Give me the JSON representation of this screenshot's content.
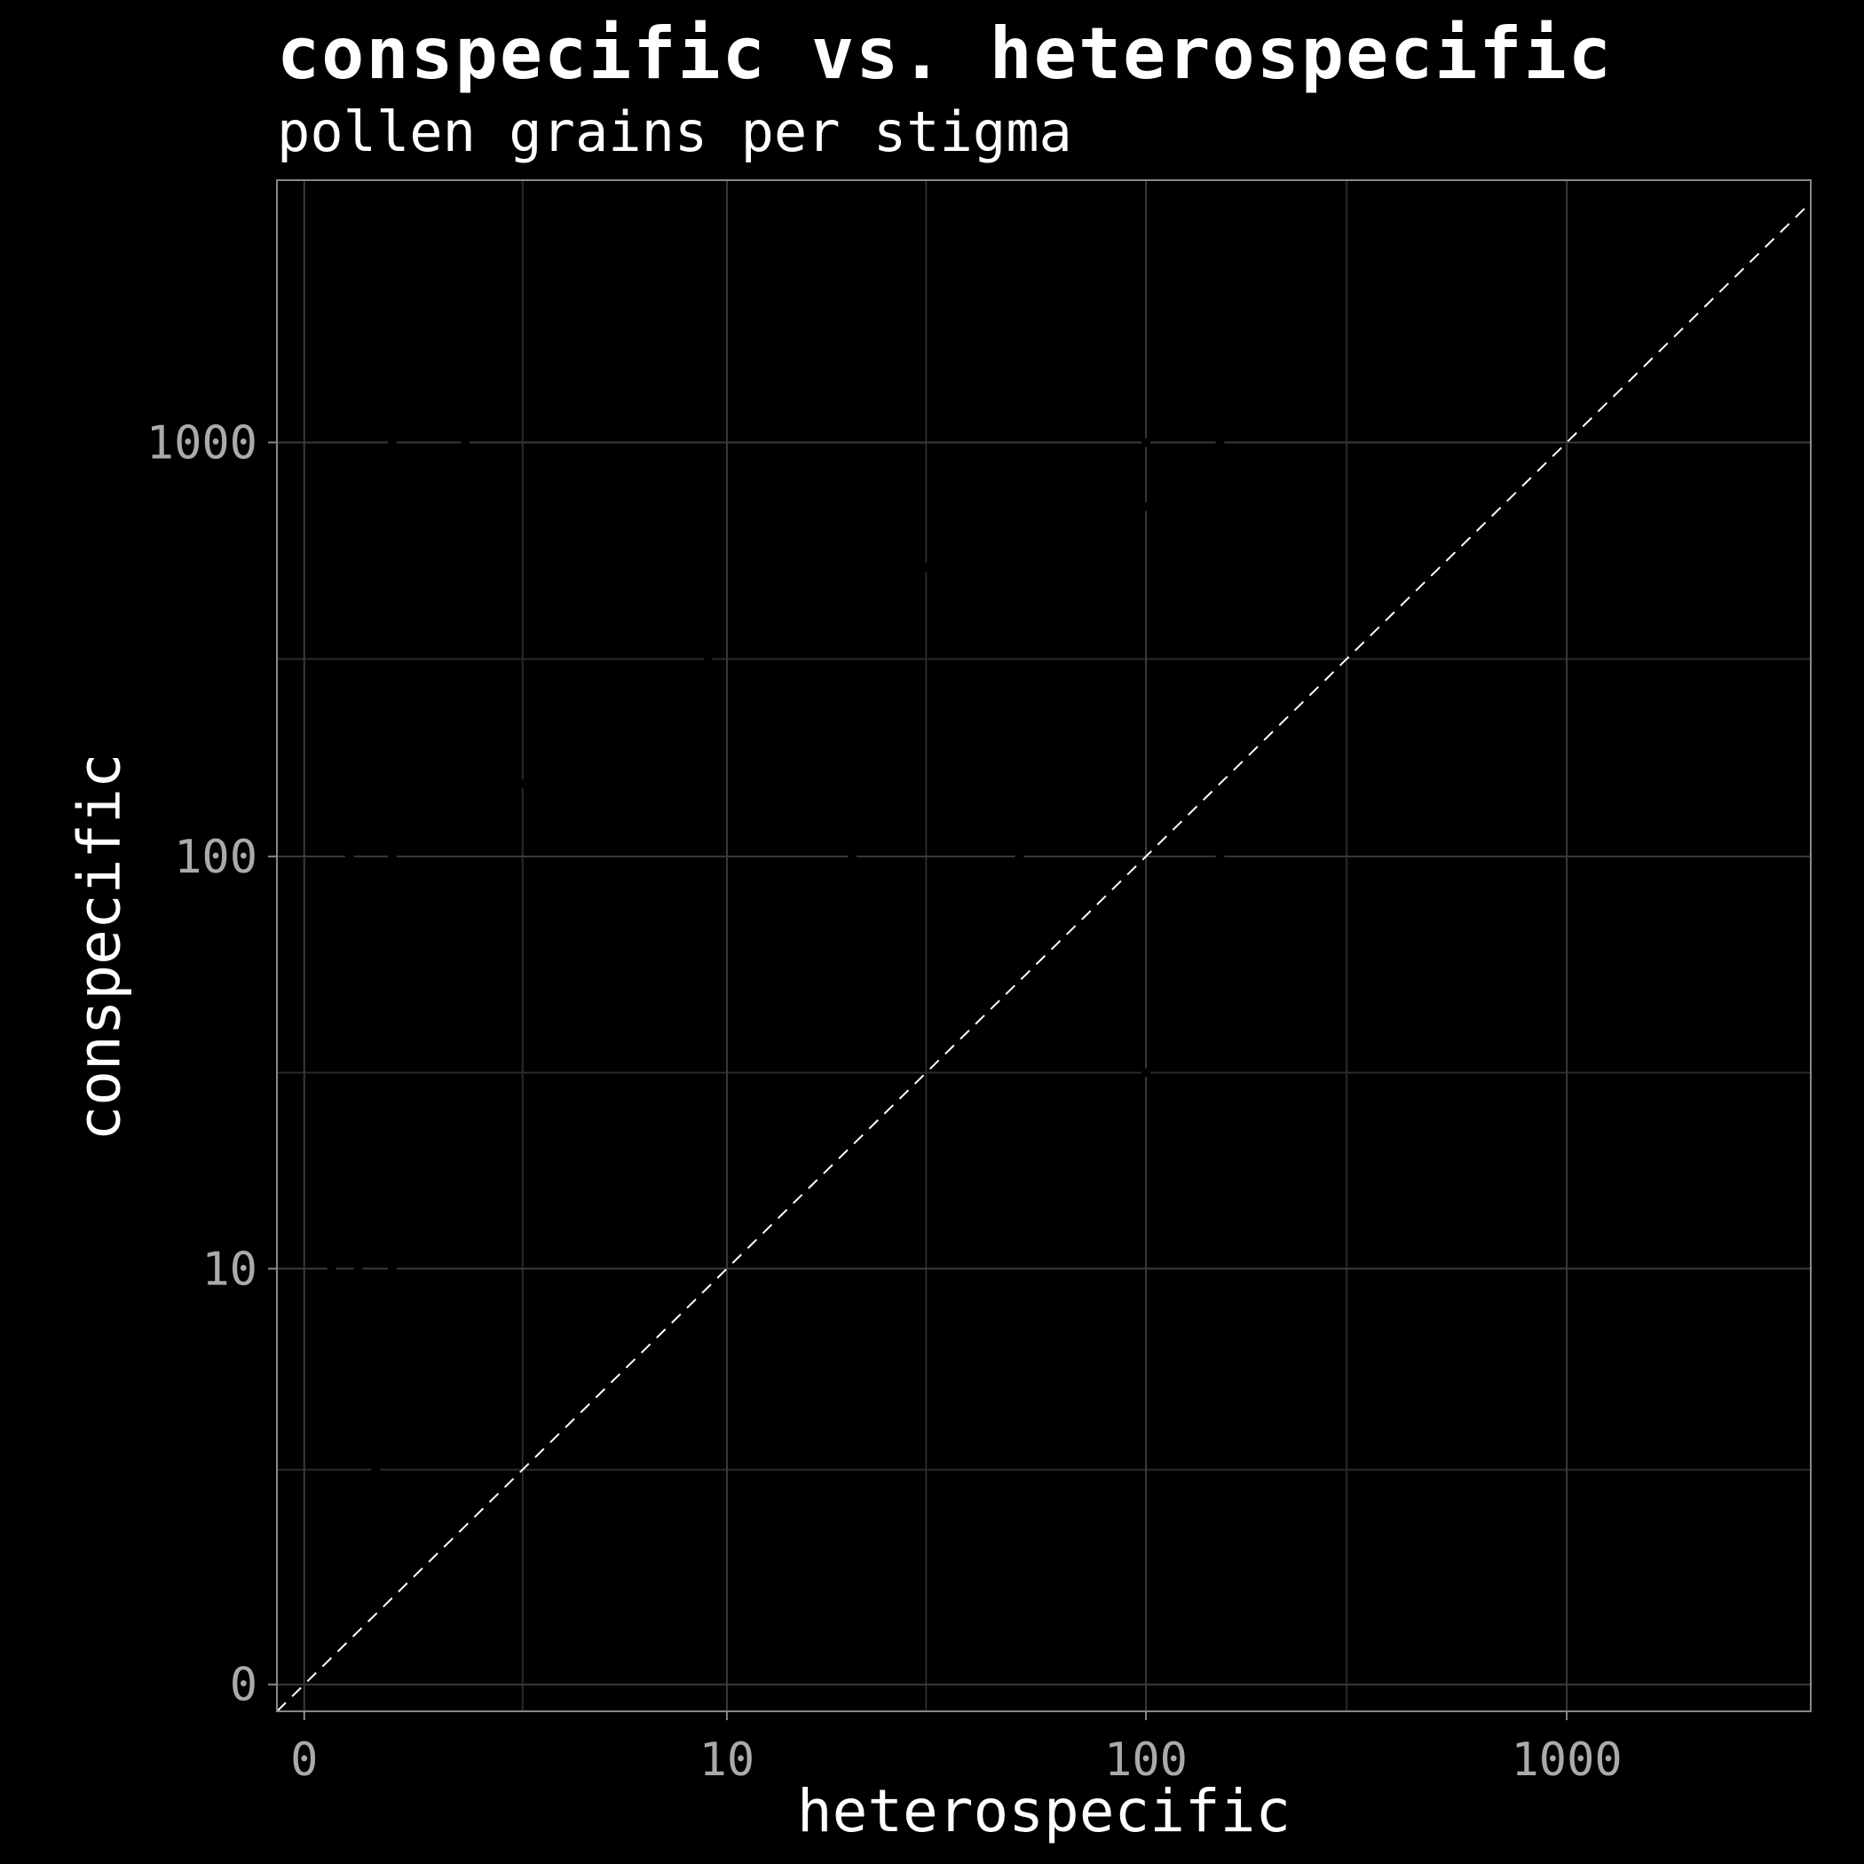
{
  "chart_data": {
    "type": "scatter",
    "title": "conspecific vs. heterospecific",
    "subtitle": "pollen grains per stigma",
    "xlabel": "heterospecific",
    "ylabel": "conspecific",
    "x_scale": "pseudo-log",
    "y_scale": "pseudo-log",
    "xlim": [
      -0.3,
      3800
    ],
    "ylim": [
      -0.3,
      4300
    ],
    "x_ticks": [
      0,
      10,
      100,
      1000
    ],
    "x_tick_labels": [
      "0",
      "10",
      "100",
      "1000"
    ],
    "y_ticks": [
      0,
      10,
      100,
      1000
    ],
    "y_tick_labels": [
      "0",
      "10",
      "100",
      "1000"
    ],
    "x_minor_grid": [
      3,
      30,
      300
    ],
    "y_minor_grid": [
      3,
      30,
      300
    ],
    "reference_line": "y = x (dashed)",
    "grid": true,
    "background": "#000000",
    "colors": {
      "background": "#000000",
      "text": "#ffffff",
      "tick_text": "#aaaaaa",
      "grid": "#3a3a3a",
      "panel_border": "#888888",
      "reference_line": "#ffffff",
      "points": "#000000"
    },
    "points": [
      {
        "x": 1,
        "y": 1000
      },
      {
        "x": 2,
        "y": 1000
      },
      {
        "x": 8,
        "y": 500
      },
      {
        "x": 30,
        "y": 500
      },
      {
        "x": 40,
        "y": 500
      },
      {
        "x": 100,
        "y": 1000
      },
      {
        "x": 150,
        "y": 1000
      },
      {
        "x": 100,
        "y": 700
      },
      {
        "x": 0.5,
        "y": 100
      },
      {
        "x": 1,
        "y": 100
      },
      {
        "x": 3,
        "y": 150
      },
      {
        "x": 9,
        "y": 300
      },
      {
        "x": 20,
        "y": 100
      },
      {
        "x": 50,
        "y": 100
      },
      {
        "x": 150,
        "y": 100
      },
      {
        "x": 0.1,
        "y": 50
      },
      {
        "x": 1,
        "y": 50
      },
      {
        "x": 5,
        "y": 50
      },
      {
        "x": 9,
        "y": 50
      },
      {
        "x": 100,
        "y": 30
      },
      {
        "x": 0.3,
        "y": 10
      },
      {
        "x": 0.6,
        "y": 10
      },
      {
        "x": 1,
        "y": 10
      },
      {
        "x": 0.8,
        "y": 3
      }
    ]
  }
}
